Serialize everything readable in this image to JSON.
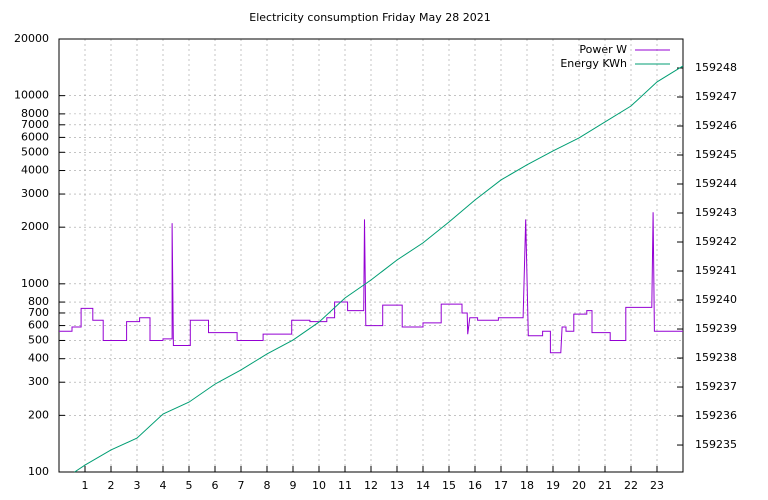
{
  "chart_data": {
    "type": "line",
    "title": "Electricity consumption Friday May 28 2021",
    "xlim": [
      0,
      24
    ],
    "xticks": [
      1,
      2,
      3,
      4,
      5,
      6,
      7,
      8,
      9,
      10,
      11,
      12,
      13,
      14,
      15,
      16,
      17,
      18,
      19,
      20,
      21,
      22,
      23
    ],
    "ylim": [
      100,
      20000
    ],
    "yscale": "log",
    "yticks": [
      100,
      200,
      300,
      400,
      500,
      600,
      700,
      800,
      1000,
      2000,
      3000,
      4000,
      5000,
      6000,
      7000,
      8000,
      10000,
      20000
    ],
    "y2lim": [
      159234.07,
      159249
    ],
    "y2ticks": [
      159235,
      159236,
      159237,
      159238,
      159239,
      159240,
      159241,
      159242,
      159243,
      159244,
      159245,
      159246,
      159247,
      159248
    ],
    "grid": true,
    "legend": "top-right",
    "series": [
      {
        "name": "Power W",
        "color": "#9400d3",
        "axis": "y",
        "x": [
          0,
          0.5,
          0.5,
          0.85,
          0.85,
          1.3,
          1.3,
          1.7,
          1.7,
          2.6,
          2.6,
          3.1,
          3.1,
          3.5,
          3.5,
          4.0,
          4.0,
          4.35,
          4.35,
          4.4,
          5.05,
          5.05,
          5.75,
          5.75,
          6.85,
          6.85,
          7.85,
          7.85,
          8.95,
          8.95,
          9.65,
          9.65,
          10.3,
          10.3,
          10.6,
          10.6,
          11.1,
          11.1,
          11.72,
          11.75,
          11.8,
          12.45,
          12.45,
          13.2,
          13.2,
          14.0,
          14.0,
          14.7,
          14.7,
          15.5,
          15.5,
          15.7,
          15.72,
          15.8,
          16.1,
          16.1,
          16.9,
          16.9,
          17.85,
          17.95,
          18.05,
          18.6,
          18.6,
          18.9,
          18.9,
          19.3,
          19.35,
          19.5,
          19.5,
          19.8,
          19.8,
          20.3,
          20.3,
          20.5,
          20.5,
          21.2,
          21.2,
          21.8,
          21.8,
          22.8,
          22.85,
          22.9,
          24
        ],
        "values": [
          560,
          560,
          590,
          590,
          740,
          740,
          640,
          640,
          500,
          500,
          630,
          630,
          660,
          660,
          500,
          500,
          510,
          510,
          2100,
          470,
          470,
          640,
          640,
          550,
          550,
          500,
          500,
          540,
          540,
          640,
          640,
          630,
          630,
          660,
          660,
          800,
          800,
          720,
          720,
          2200,
          600,
          600,
          770,
          770,
          590,
          590,
          620,
          620,
          780,
          780,
          700,
          700,
          540,
          660,
          660,
          640,
          640,
          660,
          660,
          2200,
          530,
          530,
          560,
          560,
          430,
          430,
          590,
          590,
          560,
          560,
          690,
          690,
          720,
          720,
          550,
          550,
          500,
          500,
          750,
          750,
          2400,
          560,
          560
        ]
      },
      {
        "name": "Energy KWh",
        "color": "#009e73",
        "axis": "y2",
        "x": [
          0.6,
          1,
          2,
          3,
          4,
          5,
          6,
          7,
          8,
          9,
          10,
          11,
          12,
          13,
          14,
          15,
          16,
          17,
          18,
          19,
          20,
          21,
          22,
          23,
          24
        ],
        "values": [
          159234.07,
          159234.31,
          159234.83,
          159235.24,
          159236.07,
          159236.48,
          159237.1,
          159237.59,
          159238.14,
          159238.62,
          159239.24,
          159240.07,
          159240.69,
          159241.38,
          159241.97,
          159242.69,
          159243.45,
          159244.14,
          159244.66,
          159245.14,
          159245.59,
          159246.14,
          159246.69,
          159247.52,
          159248.07
        ]
      }
    ]
  }
}
